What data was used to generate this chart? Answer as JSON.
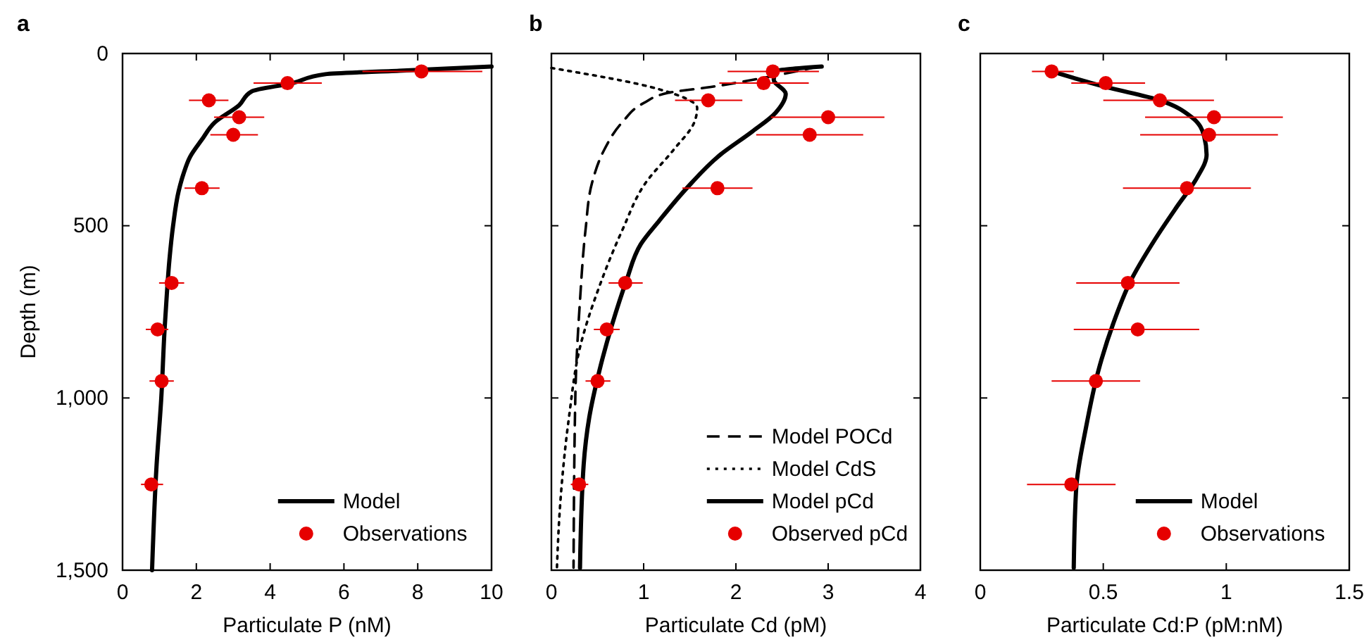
{
  "chart_data": [
    {
      "type": "line",
      "title": "a",
      "xlabel": "Particulate P (nM)",
      "ylabel": "Depth (m)",
      "xlim": [
        0,
        10
      ],
      "xticks": [
        0,
        2,
        4,
        6,
        8,
        10
      ],
      "ylim": [
        1500,
        0
      ],
      "yticks": [
        0,
        500,
        {
          "value": 1000,
          "label": "1,000"
        },
        {
          "value": 1500,
          "label": "1,500"
        }
      ],
      "legend": "bottom right",
      "series": [
        {
          "name": "Model",
          "color": "#000000",
          "line_style": "solid",
          "x": [
            10,
            7.5,
            5.5,
            4.6,
            3.5,
            3.16,
            2.5,
            2.15,
            1.83,
            1.65,
            1.52,
            1.37,
            1.27,
            1.2,
            1.14,
            1.05,
            0.92,
            0.8
          ],
          "values": [
            38,
            50,
            60,
            86,
            110,
            150,
            200,
            250,
            300,
            350,
            400,
            500,
            600,
            700,
            800,
            1000,
            1200,
            1500
          ]
        },
        {
          "name": "Observations",
          "type": "scatter",
          "color": "#e60000",
          "marker": "circle",
          "x": [
            8.1,
            4.47,
            2.34,
            3.16,
            3.0,
            2.15,
            1.33,
            0.95,
            1.06,
            0.78
          ],
          "values": [
            52,
            86,
            136,
            185,
            236,
            391,
            666,
            801,
            951,
            1251
          ],
          "xerrors": [
            [
              6.5,
              9.75
            ],
            [
              3.55,
              5.4
            ],
            [
              1.8,
              2.87
            ],
            [
              2.48,
              3.84
            ],
            [
              2.38,
              3.67
            ],
            [
              1.68,
              2.63
            ],
            [
              0.99,
              1.67
            ],
            [
              0.63,
              1.24
            ],
            [
              0.73,
              1.39
            ],
            [
              0.5,
              1.1
            ]
          ]
        }
      ]
    },
    {
      "type": "line",
      "title": "b",
      "xlabel": "Particulate Cd (pM)",
      "xlim": [
        0,
        4
      ],
      "xticks": [
        0,
        1,
        2,
        3,
        4
      ],
      "ylim": [
        1500,
        0
      ],
      "yticks": [
        {
          "value": 0,
          "label": null
        },
        {
          "value": 500,
          "label": null
        },
        {
          "value": 1000,
          "label": null
        },
        {
          "value": 1500,
          "label": null
        }
      ],
      "tick_labels": "x",
      "legend": "bottom right",
      "series": [
        {
          "name": "Model POCd",
          "color": "#000000",
          "line_style": "dashed",
          "x": [
            2.89,
            2.33,
            1.73,
            1.27,
            1.0,
            0.77,
            0.57,
            0.44,
            0.37,
            0.31,
            0.26,
            0.24
          ],
          "values": [
            38,
            69,
            97,
            114,
            144,
            199,
            281,
            376,
            512,
            717,
            989,
            1493
          ]
        },
        {
          "name": "Model CdS",
          "color": "#000000",
          "line_style": "dotted",
          "x": [
            0,
            1.17,
            1.58,
            1.55,
            1.32,
            1.02,
            0.77,
            0.52,
            0.31,
            0.19,
            0.09,
            0.06
          ],
          "values": [
            42,
            104,
            158,
            199,
            281,
            376,
            512,
            676,
            853,
            1057,
            1329,
            1493
          ]
        },
        {
          "name": "Model pCd",
          "color": "#000000",
          "line_style": "solid",
          "x": [
            2.93,
            2.43,
            2.41,
            2.54,
            2.43,
            2.18,
            1.83,
            1.47,
            1.17,
            0.97,
            0.81,
            0.66,
            0.52,
            0.41,
            0.35,
            0.31
          ],
          "values": [
            38,
            52,
            76,
            117,
            172,
            226,
            294,
            390,
            485,
            553,
            662,
            785,
            921,
            1057,
            1193,
            1493
          ]
        },
        {
          "name": "Observed pCd",
          "type": "scatter",
          "color": "#e60000",
          "marker": "circle",
          "x": [
            2.4,
            2.3,
            1.7,
            3.0,
            2.8,
            1.8,
            0.8,
            0.6,
            0.5,
            0.3
          ],
          "values": [
            52,
            86,
            136,
            185,
            236,
            391,
            666,
            801,
            951,
            1251
          ],
          "xerrors": [
            [
              1.91,
              2.9
            ],
            [
              1.82,
              2.79
            ],
            [
              1.34,
              2.07
            ],
            [
              2.38,
              3.61
            ],
            [
              2.22,
              3.38
            ],
            [
              1.42,
              2.18
            ],
            [
              0.62,
              0.99
            ],
            [
              0.46,
              0.74
            ],
            [
              0.37,
              0.64
            ],
            [
              0.21,
              0.4
            ]
          ]
        }
      ]
    },
    {
      "type": "line",
      "title": "c",
      "xlabel": "Particulate Cd:P (pM:nM)",
      "xlim": [
        0,
        1.5
      ],
      "xticks": [
        0,
        0.5,
        1,
        1.5
      ],
      "ylim": [
        1500,
        0
      ],
      "yticks": [
        {
          "value": 0,
          "label": null
        },
        {
          "value": 500,
          "label": null
        },
        {
          "value": 1000,
          "label": null
        },
        {
          "value": 1500,
          "label": null
        }
      ],
      "tick_labels": "x",
      "legend": "bottom right",
      "series": [
        {
          "name": "Model",
          "color": "#000000",
          "line_style": "solid",
          "x": [
            0.29,
            0.51,
            0.73,
            0.86,
            0.91,
            0.92,
            0.88,
            0.8,
            0.71,
            0.61,
            0.54,
            0.48,
            0.43,
            0.39,
            0.38
          ],
          "values": [
            52,
            97,
            136,
            185,
            240,
            294,
            362,
            444,
            540,
            662,
            785,
            921,
            1085,
            1262,
            1493
          ]
        },
        {
          "name": "Observations",
          "type": "scatter",
          "color": "#e60000",
          "marker": "circle",
          "x": [
            0.29,
            0.51,
            0.73,
            0.95,
            0.93,
            0.84,
            0.6,
            0.64,
            0.47,
            0.37
          ],
          "values": [
            52,
            86,
            136,
            185,
            236,
            391,
            666,
            801,
            951,
            1251
          ],
          "xerrors": [
            [
              0.21,
              0.38
            ],
            [
              0.37,
              0.67
            ],
            [
              0.5,
              0.95
            ],
            [
              0.67,
              1.23
            ],
            [
              0.65,
              1.21
            ],
            [
              0.58,
              1.1
            ],
            [
              0.39,
              0.81
            ],
            [
              0.38,
              0.89
            ],
            [
              0.29,
              0.65
            ],
            [
              0.19,
              0.55
            ]
          ]
        }
      ]
    }
  ]
}
